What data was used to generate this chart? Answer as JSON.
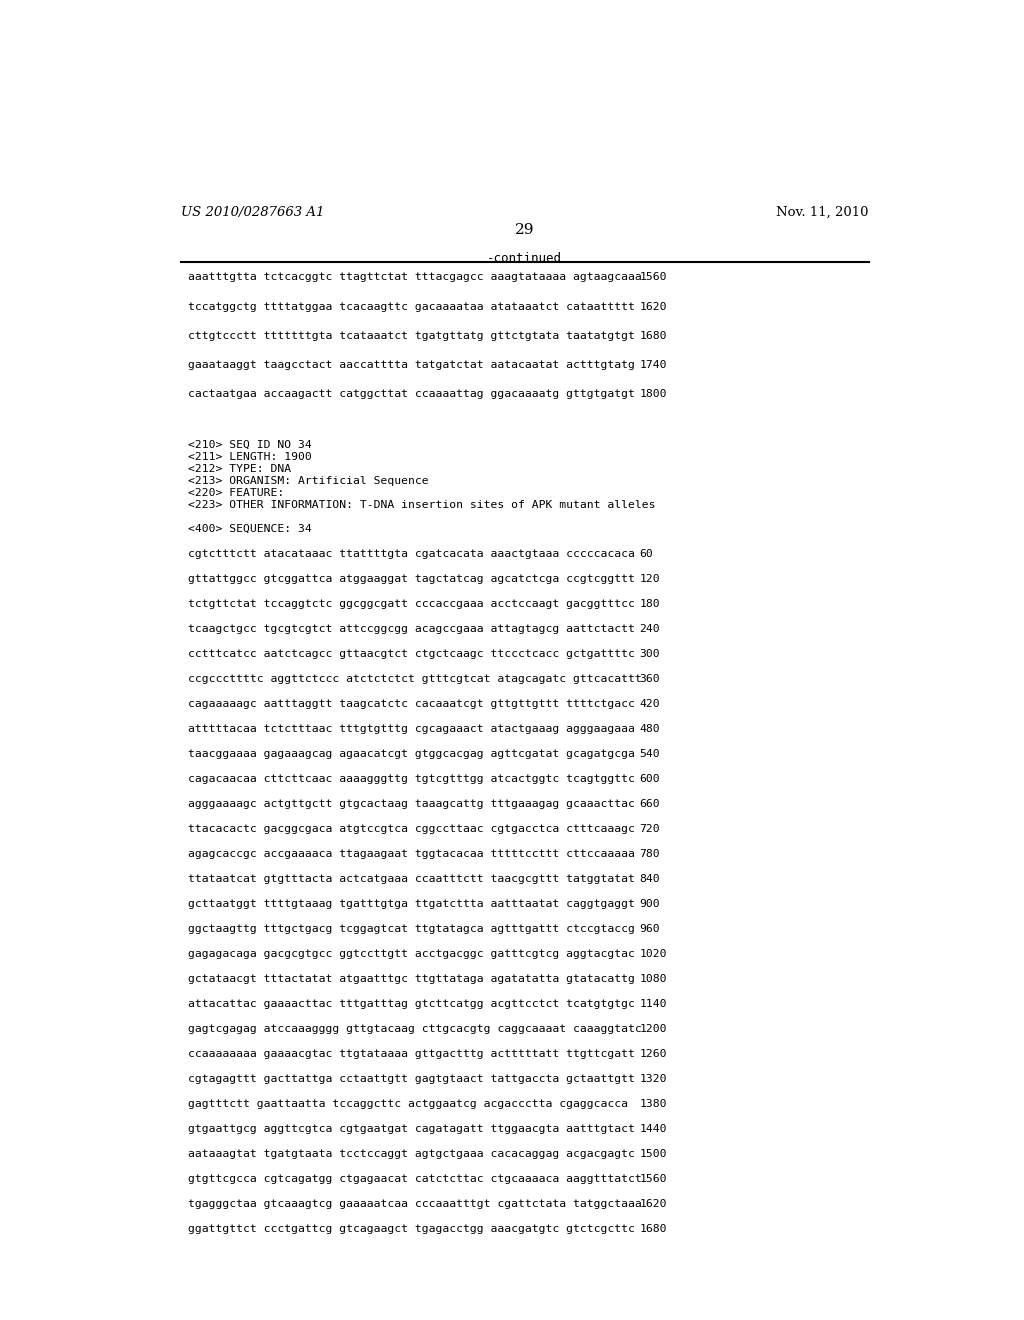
{
  "header_left": "US 2010/0287663 A1",
  "header_right": "Nov. 11, 2010",
  "page_number": "29",
  "continued_label": "-continued",
  "background_color": "#ffffff",
  "text_color": "#000000",
  "seq_lines_top": [
    [
      "aaatttgtta tctcacggtc ttagttctat tttacgagcc aaagtataaaa agtaagcaaa",
      "1560"
    ],
    [
      "tccatggctg ttttatggaa tcacaagttc gacaaaataa atataaatct cataattttt",
      "1620"
    ],
    [
      "cttgtccctt tttttttgta tcataaatct tgatgttatg gttctgtata taatatgtgt",
      "1680"
    ],
    [
      "gaaataaggt taagcctact aaccatttta tatgatctat aatacaatat actttgtatg",
      "1740"
    ],
    [
      "cactaatgaa accaagactt catggcttat ccaaaattag ggacaaaatg gttgtgatgt",
      "1800"
    ]
  ],
  "metadata_lines": [
    "<210> SEQ ID NO 34",
    "<211> LENGTH: 1900",
    "<212> TYPE: DNA",
    "<213> ORGANISM: Artificial Sequence",
    "<220> FEATURE:",
    "<223> OTHER INFORMATION: T-DNA insertion sites of APK mutant alleles"
  ],
  "seq_label": "<400> SEQUENCE: 34",
  "seq_lines_bottom": [
    [
      "cgtctttctt atacataaac ttattttgta cgatcacata aaactgtaaa cccccacaca",
      "60"
    ],
    [
      "gttattggcc gtcggattca atggaaggat tagctatcag agcatctcga ccgtcggttt",
      "120"
    ],
    [
      "tctgttctat tccaggtctc ggcggcgatt cccaccgaaa acctccaagt gacggtttcc",
      "180"
    ],
    [
      "tcaagctgcc tgcgtcgtct attccggcgg acagccgaaa attagtagcg aattctactt",
      "240"
    ],
    [
      "cctttcatcc aatctcagcc gttaacgtct ctgctcaagc ttccctcacc gctgattttc",
      "300"
    ],
    [
      "ccgcccttttc aggttctccc atctctctct gtttcgtcat atagcagatc gttcacattt",
      "360"
    ],
    [
      "cagaaaaagc aatttaggtt taagcatctc cacaaatcgt gttgttgttt ttttctgacc",
      "420"
    ],
    [
      "atttttacaa tctctttaac tttgtgtttg cgcagaaact atactgaaag agggaagaaa",
      "480"
    ],
    [
      "taacggaaaa gagaaagcag agaacatcgt gtggcacgag agttcgatat gcagatgcga",
      "540"
    ],
    [
      "cagacaacaa cttcttcaac aaaagggttg tgtcgtttgg atcactggtc tcagtggttc",
      "600"
    ],
    [
      "agggaaaagc actgttgctt gtgcactaag taaagcattg tttgaaagag gcaaacttac",
      "660"
    ],
    [
      "ttacacactc gacggcgaca atgtccgtca cggccttaac cgtgacctca ctttcaaagc",
      "720"
    ],
    [
      "agagcaccgc accgaaaaca ttagaagaat tggtacacaa tttttccttt cttccaaaaa",
      "780"
    ],
    [
      "ttataatcat gtgtttacta actcatgaaa ccaatttctt taacgcgttt tatggtatat",
      "840"
    ],
    [
      "gcttaatggt ttttgtaaag tgatttgtga ttgatcttta aatttaatat caggtgaggt",
      "900"
    ],
    [
      "ggctaagttg tttgctgacg tcggagtcat ttgtatagca agtttgattt ctccgtaccg",
      "960"
    ],
    [
      "gagagacaga gacgcgtgcc ggtccttgtt acctgacggc gatttcgtcg aggtacgtac",
      "1020"
    ],
    [
      "gctataacgt tttactatat atgaatttgc ttgttataga agatatatta gtatacattg",
      "1080"
    ],
    [
      "attacattac gaaaacttac tttgatttag gtcttcatgg acgttcctct tcatgtgtgc",
      "1140"
    ],
    [
      "gagtcgagag atccaaagggg gttgtacaag cttgcacgtg caggcaaaat caaaggtatc",
      "1200"
    ],
    [
      "ccaaaaaaaa gaaaacgtac ttgtataaaa gttgactttg actttttatt ttgttcgatt",
      "1260"
    ],
    [
      "cgtagagttt gacttattga cctaattgtt gagtgtaact tattgaccta gctaattgtt",
      "1320"
    ],
    [
      "gagtttctt gaattaatta tccaggcttc actggaatcg acgaccctta cgaggcacca",
      "1380"
    ],
    [
      "gtgaattgcg aggttcgtca cgtgaatgat cagatagatt ttggaacgta aatttgtact",
      "1440"
    ],
    [
      "aataaagtat tgatgtaata tcctccaggt agtgctgaaa cacacaggag acgacgagtc",
      "1500"
    ],
    [
      "gtgttcgcca cgtcagatgg ctgagaacat catctcttac ctgcaaaaca aaggtttatct",
      "1560"
    ],
    [
      "tgagggctaa gtcaaagtcg gaaaaatcaa cccaaatttgt cgattctata tatggctaaa",
      "1620"
    ],
    [
      "ggattgttct ccctgattcg gtcagaagct tgagacctgg aaacgatgtc gtctcgcttc",
      "1680"
    ]
  ]
}
